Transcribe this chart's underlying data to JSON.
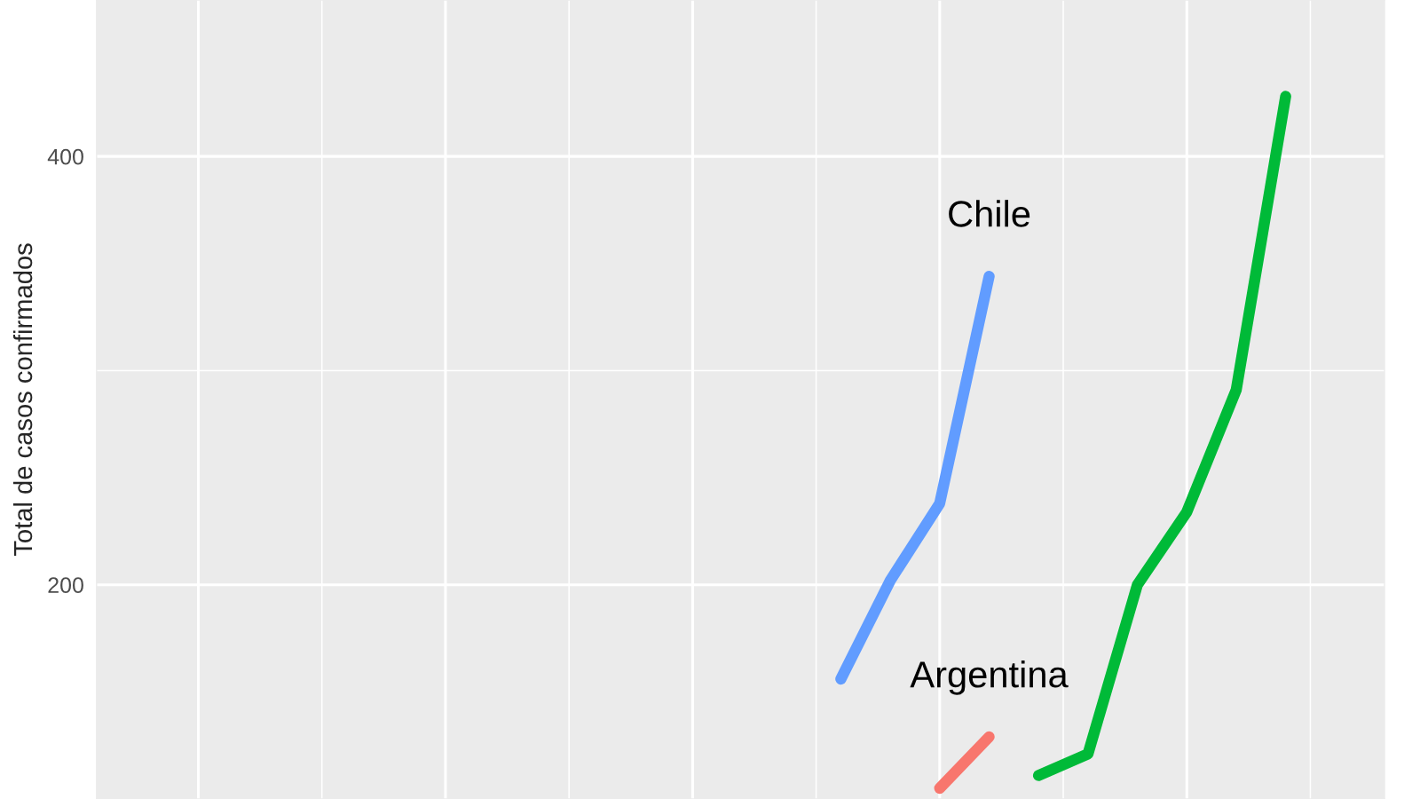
{
  "chart_data": {
    "type": "line",
    "ylabel": "Total de casos confirmados",
    "categories": [
      null,
      null,
      null,
      null,
      null,
      null,
      null,
      null,
      null,
      null,
      null,
      null,
      null,
      null,
      null,
      null,
      null,
      null,
      null,
      null,
      null,
      null,
      null,
      null,
      null,
      null,
      null
    ],
    "series": [
      {
        "name": "Chile",
        "color": "#619cff",
        "values": [
          null,
          null,
          null,
          null,
          null,
          null,
          null,
          null,
          null,
          null,
          null,
          null,
          null,
          null,
          null,
          156,
          202,
          238,
          344,
          null,
          null,
          null,
          null,
          null,
          null,
          null,
          null
        ]
      },
      {
        "name": "Argentina",
        "color": "#f8766d",
        "values": [
          null,
          null,
          null,
          null,
          null,
          null,
          null,
          null,
          null,
          null,
          null,
          null,
          null,
          null,
          null,
          null,
          null,
          105,
          129,
          null,
          null,
          null,
          null,
          null,
          null,
          null,
          null
        ]
      },
      {
        "color": "#00ba38",
        "values": [
          null,
          null,
          null,
          null,
          null,
          null,
          null,
          null,
          null,
          null,
          null,
          null,
          null,
          null,
          null,
          null,
          null,
          null,
          null,
          111,
          121,
          200,
          234,
          291,
          428,
          null,
          null
        ]
      }
    ],
    "ylim": [
      100,
      473
    ],
    "yticks": [
      200,
      400
    ],
    "tick_labels": "y",
    "grid": true,
    "line_style": "solid",
    "marker": "none"
  }
}
